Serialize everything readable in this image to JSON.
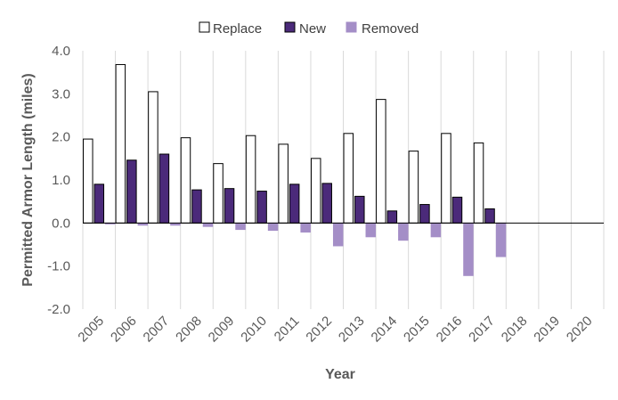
{
  "chart_data": {
    "type": "bar",
    "xlabel": "Year",
    "ylabel": "Permitted Armor Length (miles)",
    "ylim": [
      -2.0,
      4.0
    ],
    "ytick_step": 1.0,
    "grid": "vertical",
    "legend_position": "top",
    "categories": [
      "2005",
      "2006",
      "2007",
      "2008",
      "2009",
      "2010",
      "2011",
      "2012",
      "2013",
      "2014",
      "2015",
      "2016",
      "2017",
      "2018",
      "2019",
      "2020"
    ],
    "series": [
      {
        "name": "Replace",
        "fill": "#ffffff",
        "stroke": "#000000",
        "values": [
          1.95,
          3.68,
          3.05,
          1.98,
          1.38,
          2.03,
          1.83,
          1.5,
          2.08,
          2.87,
          1.67,
          2.08,
          1.86,
          null,
          null,
          null
        ]
      },
      {
        "name": "New",
        "fill": "#4b2a7a",
        "stroke": "#000000",
        "values": [
          0.9,
          1.46,
          1.6,
          0.77,
          0.8,
          0.74,
          0.9,
          0.92,
          0.62,
          0.28,
          0.43,
          0.6,
          0.33,
          null,
          null,
          null
        ]
      },
      {
        "name": "Removed",
        "fill": "#a48ec7",
        "stroke": "#a48ec7",
        "values": [
          -0.02,
          -0.05,
          -0.05,
          -0.08,
          -0.15,
          -0.17,
          -0.21,
          -0.53,
          -0.32,
          -0.4,
          -0.32,
          -1.22,
          -0.78,
          null,
          null,
          null
        ]
      }
    ]
  }
}
